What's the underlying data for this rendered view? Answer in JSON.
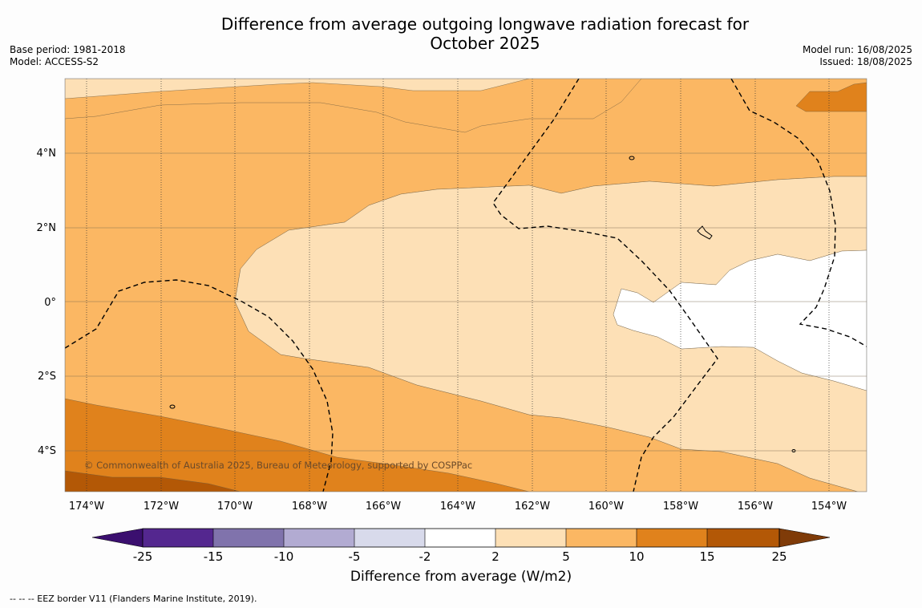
{
  "title_line1": "Difference from average outgoing longwave radiation forecast for",
  "title_line2": "October 2025",
  "meta_left": [
    "Base period: 1981-2018",
    "Model: ACCESS-S2"
  ],
  "meta_right": [
    "Model run: 16/08/2025",
    "Issued: 18/08/2025"
  ],
  "copyright": "© Commonwealth of Australia 2025, Bureau of Meteorology, supported by COSPPac",
  "x_ticks": [
    "174°W",
    "172°W",
    "170°W",
    "168°W",
    "166°W",
    "164°W",
    "162°W",
    "160°W",
    "158°W",
    "156°W",
    "154°W"
  ],
  "y_ticks": [
    "4°N",
    "2°N",
    "0°",
    "2°S",
    "4°S"
  ],
  "colorbar": {
    "title": "Difference from average (W/m2)",
    "ticks": [
      "-25",
      "-15",
      "-10",
      "-5",
      "-2",
      "2",
      "5",
      "10",
      "15",
      "25"
    ],
    "colors": [
      "#3b0f6f",
      "#54278f",
      "#8073ac",
      "#b2abd2",
      "#d8daeb",
      "#ffffff",
      "#fde0b6",
      "#fbb763",
      "#e0821c",
      "#b35806",
      "#7f3b08"
    ]
  },
  "legend_footer": "--  --  -- EEZ border V11 (Flanders Marine Institute, 2019)."
}
